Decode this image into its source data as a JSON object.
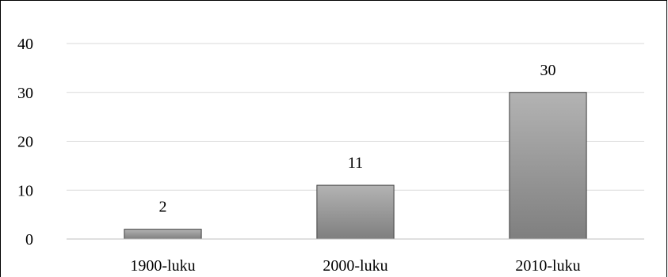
{
  "chart_data": {
    "type": "bar",
    "categories": [
      "1900-luku",
      "2000-luku",
      "2010-luku"
    ],
    "values": [
      2,
      11,
      30
    ],
    "data_labels": [
      "2",
      "11",
      "30"
    ],
    "yticks": [
      "0",
      "10",
      "20",
      "30",
      "40"
    ],
    "ylim": [
      0,
      40
    ],
    "title": "",
    "xlabel": "",
    "ylabel": "",
    "grid": "horizontal",
    "legend": "none",
    "colors": {
      "bar_top": "#b3b3b3",
      "bar_bottom": "#7f7f7f",
      "bar_stroke": "#404040",
      "grid": "#d9d9d9",
      "axis": "#bfbfbf",
      "frame": "#000000"
    }
  }
}
